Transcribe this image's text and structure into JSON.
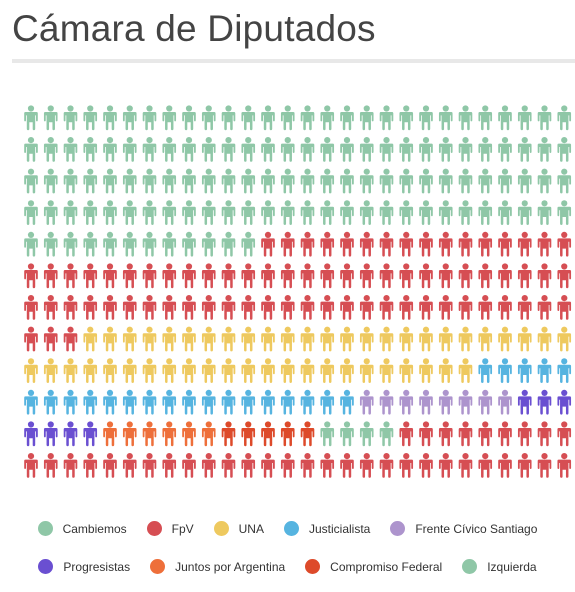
{
  "page": {
    "title": "Cámara de Diputados"
  },
  "chart_data": {
    "type": "waffle",
    "title": "Cámara de Diputados",
    "unit": "person-icon",
    "columns": 28,
    "rows": 12,
    "series": [
      {
        "name": "Cambiemos",
        "value": 124,
        "color": "#8fc7a7"
      },
      {
        "name": "FpV",
        "value": 75,
        "color": "#d64e53"
      },
      {
        "name": "UNA",
        "value": 48,
        "color": "#eec95f"
      },
      {
        "name": "Justicialista",
        "value": 22,
        "color": "#56b4e0"
      },
      {
        "name": "Frente Cívico Santiago",
        "value": 8,
        "color": "#ad94cd"
      },
      {
        "name": "Progresistas",
        "value": 7,
        "color": "#6a4fd1"
      },
      {
        "name": "Juntos por Argentina",
        "value": 6,
        "color": "#ee6f3a"
      },
      {
        "name": "Compromiso Federal",
        "value": 5,
        "color": "#dd4a2a"
      },
      {
        "name": "Izquierda",
        "value": 4,
        "color": "#8fc7a7"
      },
      {
        "name": "FpV",
        "value": 37,
        "color": "#d64e53",
        "legend": false
      }
    ],
    "legend": {
      "placement": "bottom",
      "rows": [
        [
          {
            "label": "Cambiemos",
            "color": "#8fc7a7"
          },
          {
            "label": "FpV",
            "color": "#d64e53"
          },
          {
            "label": "UNA",
            "color": "#eec95f"
          },
          {
            "label": "Justicialista",
            "color": "#56b4e0"
          },
          {
            "label": "Frente Cívico Santiago",
            "color": "#ad94cd"
          }
        ],
        [
          {
            "label": "Progresistas",
            "color": "#6a4fd1"
          },
          {
            "label": "Juntos por Argentina",
            "color": "#ee6f3a"
          },
          {
            "label": "Compromiso Federal",
            "color": "#dd4a2a"
          },
          {
            "label": "Izquierda",
            "color": "#8fc7a7"
          }
        ]
      ]
    }
  }
}
